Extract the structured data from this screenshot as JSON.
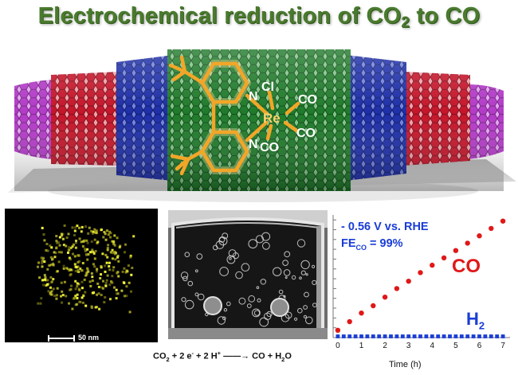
{
  "title": {
    "main": "Electrochemical reduction of CO",
    "sub": "2",
    "tail": " to CO"
  },
  "complex": {
    "metal": "Re",
    "halide": "Cl",
    "ligands": [
      "N",
      "N"
    ],
    "carbonyls": [
      "CO",
      "CO",
      "CO"
    ]
  },
  "colors": {
    "title_green": "#4a7a2e",
    "tube_magenta": "#b23bc6",
    "tube_red": "#c4152a",
    "tube_blue": "#1d2ea8",
    "tube_green": "#1f7a2a",
    "molecule_orange": "#f2a628",
    "co_red": "#e01818",
    "h2_blue": "#1a3dd6"
  },
  "eds_map": {
    "scale_label": "50 nm"
  },
  "equation": {
    "parts": [
      "CO",
      "2",
      " + 2 e",
      "-",
      " + 2 H",
      "+",
      "→",
      " CO + H",
      "2",
      "O"
    ]
  },
  "chart_data": {
    "type": "scatter",
    "annotations": {
      "condition": "- 0.56 V vs. RHE",
      "fe_main": "FE",
      "fe_sub": "CO",
      "fe_value": " = 99%"
    },
    "xlabel": "Time (h)",
    "xlim": [
      -0.2,
      7.3
    ],
    "ylim": [
      0,
      1
    ],
    "x_ticks": [
      "0",
      "1",
      "2",
      "3",
      "4",
      "5",
      "6",
      "7"
    ],
    "y_ticks_labeled": false,
    "series": [
      {
        "name": "CO",
        "color": "#e01818",
        "x": [
          0,
          0.5,
          1,
          1.5,
          2,
          2.5,
          3,
          3.5,
          4,
          4.5,
          5,
          5.5,
          6,
          6.5,
          7
        ],
        "y": [
          0.06,
          0.13,
          0.2,
          0.26,
          0.33,
          0.4,
          0.46,
          0.53,
          0.59,
          0.65,
          0.71,
          0.77,
          0.83,
          0.89,
          0.95
        ]
      },
      {
        "name": "H2",
        "name_main": "H",
        "name_sub": "2",
        "color": "#1a3dd6",
        "x": [
          0,
          0.25,
          0.5,
          0.75,
          1,
          1.25,
          1.5,
          1.75,
          2,
          2.25,
          2.5,
          2.75,
          3,
          3.25,
          3.5,
          3.75,
          4,
          4.25,
          4.5,
          4.75,
          5,
          5.25,
          5.5,
          5.75,
          6,
          6.25,
          6.5,
          6.75,
          7
        ],
        "y": [
          0.01,
          0.01,
          0.01,
          0.01,
          0.01,
          0.01,
          0.01,
          0.01,
          0.01,
          0.01,
          0.01,
          0.01,
          0.01,
          0.01,
          0.01,
          0.01,
          0.01,
          0.01,
          0.01,
          0.01,
          0.01,
          0.01,
          0.01,
          0.01,
          0.01,
          0.01,
          0.01,
          0.01,
          0.01
        ]
      }
    ]
  }
}
